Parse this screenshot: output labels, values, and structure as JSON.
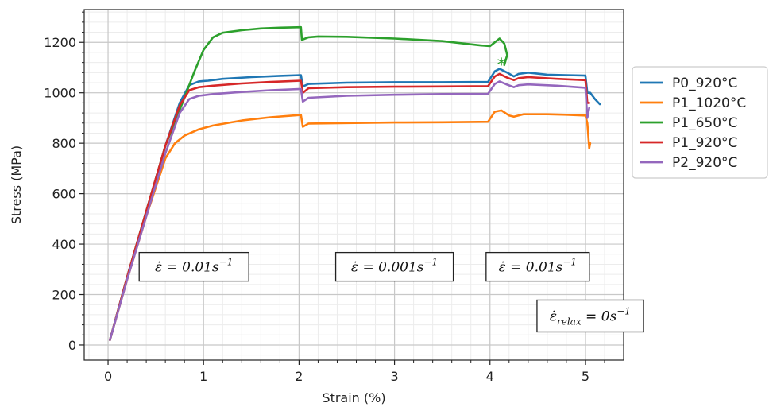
{
  "chart_data": {
    "type": "line",
    "xlabel": "Strain (%)",
    "ylabel": "Stress (MPa)",
    "xlim": [
      -0.25,
      5.4
    ],
    "ylim": [
      -60,
      1330
    ],
    "xticks": [
      0,
      1,
      2,
      3,
      4,
      5
    ],
    "yticks": [
      0,
      200,
      400,
      600,
      800,
      1000,
      1200
    ],
    "grid": true,
    "legend_position": "outside-right",
    "series": [
      {
        "name": "P0_920°C",
        "color": "#1f77b4",
        "points": [
          [
            0.02,
            20
          ],
          [
            0.2,
            270
          ],
          [
            0.4,
            530
          ],
          [
            0.6,
            790
          ],
          [
            0.75,
            960
          ],
          [
            0.85,
            1030
          ],
          [
            0.95,
            1045
          ],
          [
            1.05,
            1048
          ],
          [
            1.2,
            1055
          ],
          [
            1.5,
            1062
          ],
          [
            1.8,
            1067
          ],
          [
            2.02,
            1070
          ],
          [
            2.04,
            1025
          ],
          [
            2.1,
            1035
          ],
          [
            2.5,
            1040
          ],
          [
            3.0,
            1042
          ],
          [
            3.5,
            1042
          ],
          [
            3.98,
            1043
          ],
          [
            4.05,
            1085
          ],
          [
            4.1,
            1095
          ],
          [
            4.18,
            1080
          ],
          [
            4.25,
            1065
          ],
          [
            4.3,
            1075
          ],
          [
            4.4,
            1080
          ],
          [
            4.6,
            1072
          ],
          [
            4.8,
            1070
          ],
          [
            5.0,
            1068
          ],
          [
            5.02,
            1000
          ],
          [
            5.05,
            1000
          ],
          [
            5.1,
            975
          ],
          [
            5.15,
            955
          ]
        ]
      },
      {
        "name": "P1_1020°C",
        "color": "#ff7f0e",
        "points": [
          [
            0.02,
            20
          ],
          [
            0.2,
            260
          ],
          [
            0.4,
            510
          ],
          [
            0.6,
            740
          ],
          [
            0.7,
            800
          ],
          [
            0.8,
            830
          ],
          [
            0.95,
            855
          ],
          [
            1.1,
            870
          ],
          [
            1.4,
            890
          ],
          [
            1.7,
            903
          ],
          [
            2.02,
            912
          ],
          [
            2.04,
            865
          ],
          [
            2.1,
            878
          ],
          [
            2.5,
            880
          ],
          [
            3.0,
            882
          ],
          [
            3.5,
            883
          ],
          [
            3.98,
            885
          ],
          [
            4.05,
            925
          ],
          [
            4.12,
            930
          ],
          [
            4.2,
            910
          ],
          [
            4.25,
            905
          ],
          [
            4.35,
            915
          ],
          [
            4.6,
            915
          ],
          [
            4.8,
            913
          ],
          [
            5.0,
            910
          ],
          [
            5.02,
            880
          ],
          [
            5.04,
            780
          ],
          [
            5.05,
            800
          ]
        ]
      },
      {
        "name": "P1_650°C",
        "color": "#2ca02c",
        "points": [
          [
            0.02,
            20
          ],
          [
            0.2,
            270
          ],
          [
            0.4,
            530
          ],
          [
            0.6,
            790
          ],
          [
            0.8,
            980
          ],
          [
            0.9,
            1080
          ],
          [
            1.0,
            1170
          ],
          [
            1.1,
            1220
          ],
          [
            1.2,
            1238
          ],
          [
            1.4,
            1248
          ],
          [
            1.6,
            1255
          ],
          [
            1.8,
            1258
          ],
          [
            2.02,
            1260
          ],
          [
            2.03,
            1210
          ],
          [
            2.1,
            1220
          ],
          [
            2.2,
            1223
          ],
          [
            2.5,
            1222
          ],
          [
            3.0,
            1215
          ],
          [
            3.5,
            1205
          ],
          [
            3.9,
            1188
          ],
          [
            4.0,
            1185
          ],
          [
            4.05,
            1200
          ],
          [
            4.1,
            1215
          ],
          [
            4.15,
            1195
          ],
          [
            4.18,
            1150
          ],
          [
            4.15,
            1110
          ]
        ]
      },
      {
        "name": "P1_920°C",
        "color": "#d62728",
        "points": [
          [
            0.02,
            20
          ],
          [
            0.2,
            270
          ],
          [
            0.4,
            530
          ],
          [
            0.6,
            790
          ],
          [
            0.75,
            950
          ],
          [
            0.85,
            1010
          ],
          [
            0.95,
            1022
          ],
          [
            1.1,
            1028
          ],
          [
            1.4,
            1037
          ],
          [
            1.7,
            1043
          ],
          [
            2.02,
            1048
          ],
          [
            2.04,
            1000
          ],
          [
            2.1,
            1018
          ],
          [
            2.5,
            1022
          ],
          [
            3.0,
            1024
          ],
          [
            3.5,
            1025
          ],
          [
            3.98,
            1026
          ],
          [
            4.05,
            1065
          ],
          [
            4.1,
            1075
          ],
          [
            4.18,
            1060
          ],
          [
            4.25,
            1050
          ],
          [
            4.3,
            1058
          ],
          [
            4.4,
            1062
          ],
          [
            4.7,
            1055
          ],
          [
            5.0,
            1050
          ],
          [
            5.02,
            960
          ],
          [
            5.04,
            960
          ]
        ]
      },
      {
        "name": "P2_920°C",
        "color": "#9467bd",
        "points": [
          [
            0.02,
            20
          ],
          [
            0.2,
            260
          ],
          [
            0.4,
            510
          ],
          [
            0.6,
            760
          ],
          [
            0.75,
            920
          ],
          [
            0.85,
            975
          ],
          [
            0.95,
            988
          ],
          [
            1.1,
            995
          ],
          [
            1.4,
            1003
          ],
          [
            1.7,
            1010
          ],
          [
            2.02,
            1015
          ],
          [
            2.04,
            965
          ],
          [
            2.1,
            980
          ],
          [
            2.5,
            988
          ],
          [
            3.0,
            992
          ],
          [
            3.5,
            995
          ],
          [
            3.98,
            996
          ],
          [
            4.05,
            1035
          ],
          [
            4.1,
            1045
          ],
          [
            4.18,
            1032
          ],
          [
            4.25,
            1022
          ],
          [
            4.3,
            1030
          ],
          [
            4.4,
            1033
          ],
          [
            4.7,
            1028
          ],
          [
            5.0,
            1020
          ],
          [
            5.02,
            900
          ],
          [
            5.04,
            940
          ]
        ]
      }
    ],
    "marker": {
      "series": "P1_650°C",
      "x": 4.12,
      "y": 1115,
      "symbol": "*"
    },
    "annotations": [
      {
        "text_main": "ε̇ = 0.01s",
        "sup": "−1",
        "x": 0.9,
        "y": 310
      },
      {
        "text_main": "ε̇ = 0.001s",
        "sup": "−1",
        "x": 3.0,
        "y": 310
      },
      {
        "text_main": "ε̇ = 0.01s",
        "sup": "−1",
        "x": 4.5,
        "y": 310
      },
      {
        "text_main": "ε̇",
        "sub": "relax",
        "text_tail": " = 0s",
        "sup": "−1",
        "x": 5.05,
        "y": 115
      }
    ]
  }
}
